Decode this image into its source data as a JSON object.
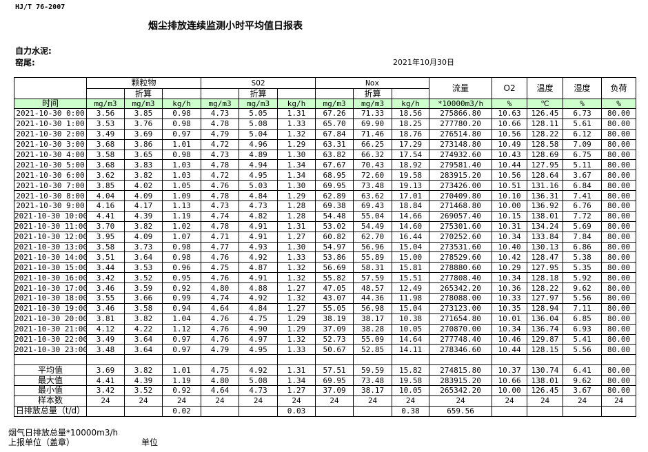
{
  "header": {
    "standard": "HJ/T  76-2007",
    "title": "烟尘排放连续监测小时平均值日报表",
    "company": "自力水泥:",
    "kiln": "窑尾:",
    "date": "2021年10月30日"
  },
  "table": {
    "groups": {
      "particulate": "颗粒物",
      "so2": "SO2",
      "nox": "Nox",
      "flow": "流量",
      "o2": "O2",
      "temp": "温度",
      "humidity": "湿度",
      "load": "负荷"
    },
    "converted": "折算",
    "units": [
      "时间",
      "mg/m3",
      "mg/m3",
      "kg/h",
      "mg/m3",
      "mg/m3",
      "kg/h",
      "mg/m3",
      "mg/m3",
      "kg/h",
      "*10000m3/h",
      "%",
      "℃",
      "%",
      "%"
    ],
    "rows": [
      [
        "2021-10-30 0:00",
        "3.56",
        "3.85",
        "0.98",
        "4.73",
        "5.05",
        "1.31",
        "67.26",
        "71.33",
        "18.56",
        "275866.80",
        "10.63",
        "126.45",
        "6.73",
        "80.00"
      ],
      [
        "2021-10-30 1:00",
        "3.53",
        "3.76",
        "0.98",
        "4.78",
        "5.08",
        "1.33",
        "65.70",
        "69.90",
        "18.25",
        "277780.20",
        "10.66",
        "128.11",
        "5.61",
        "80.00"
      ],
      [
        "2021-10-30 2:00",
        "3.49",
        "3.69",
        "0.97",
        "4.79",
        "5.04",
        "1.32",
        "67.84",
        "71.46",
        "18.76",
        "276514.80",
        "10.56",
        "128.22",
        "6.12",
        "80.00"
      ],
      [
        "2021-10-30 3:00",
        "3.68",
        "3.86",
        "1.01",
        "4.72",
        "4.96",
        "1.29",
        "63.31",
        "66.25",
        "17.29",
        "273148.80",
        "10.49",
        "128.58",
        "7.09",
        "80.00"
      ],
      [
        "2021-10-30 4:00",
        "3.58",
        "3.65",
        "0.98",
        "4.73",
        "4.89",
        "1.30",
        "63.82",
        "66.32",
        "17.54",
        "274932.60",
        "10.43",
        "128.69",
        "6.75",
        "80.00"
      ],
      [
        "2021-10-30 5:00",
        "3.68",
        "3.83",
        "1.03",
        "4.78",
        "4.94",
        "1.34",
        "67.67",
        "70.43",
        "18.92",
        "279581.40",
        "10.44",
        "127.95",
        "5.11",
        "80.00"
      ],
      [
        "2021-10-30 6:00",
        "3.62",
        "3.82",
        "1.03",
        "4.72",
        "4.95",
        "1.34",
        "68.95",
        "72.60",
        "19.58",
        "283915.20",
        "10.56",
        "128.64",
        "3.67",
        "80.00"
      ],
      [
        "2021-10-30 7:00",
        "3.85",
        "4.02",
        "1.05",
        "4.76",
        "5.03",
        "1.30",
        "69.95",
        "73.48",
        "19.13",
        "273426.00",
        "10.51",
        "131.16",
        "6.84",
        "80.00"
      ],
      [
        "2021-10-30 8:00",
        "4.04",
        "4.09",
        "1.09",
        "4.78",
        "4.84",
        "1.29",
        "62.89",
        "63.62",
        "17.01",
        "270409.80",
        "10.10",
        "136.31",
        "7.41",
        "80.00"
      ],
      [
        "2021-10-30 9:00",
        "4.16",
        "4.17",
        "1.13",
        "4.73",
        "4.73",
        "1.28",
        "69.38",
        "69.43",
        "18.84",
        "271468.80",
        "10.00",
        "136.92",
        "6.76",
        "80.00"
      ],
      [
        "2021-10-30 10:00",
        "4.41",
        "4.39",
        "1.19",
        "4.74",
        "4.82",
        "1.28",
        "54.48",
        "55.04",
        "14.66",
        "269057.40",
        "10.15",
        "138.01",
        "7.72",
        "80.00"
      ],
      [
        "2021-10-30 11:00",
        "3.70",
        "3.82",
        "1.02",
        "4.78",
        "4.91",
        "1.31",
        "53.02",
        "54.49",
        "14.60",
        "275301.60",
        "10.31",
        "134.24",
        "5.69",
        "80.00"
      ],
      [
        "2021-10-30 12:00",
        "3.95",
        "4.09",
        "1.07",
        "4.71",
        "4.91",
        "1.27",
        "60.82",
        "62.70",
        "16.44",
        "270252.60",
        "10.34",
        "133.84",
        "7.84",
        "80.00"
      ],
      [
        "2021-10-30 13:00",
        "3.58",
        "3.73",
        "0.98",
        "4.77",
        "4.93",
        "1.30",
        "54.97",
        "56.96",
        "15.04",
        "273531.60",
        "10.40",
        "130.13",
        "6.86",
        "80.00"
      ],
      [
        "2021-10-30 14:00",
        "3.51",
        "3.64",
        "0.98",
        "4.76",
        "4.92",
        "1.33",
        "53.86",
        "55.89",
        "15.00",
        "278529.60",
        "10.42",
        "128.47",
        "5.38",
        "80.00"
      ],
      [
        "2021-10-30 15:00",
        "3.44",
        "3.53",
        "0.96",
        "4.75",
        "4.87",
        "1.32",
        "56.69",
        "58.31",
        "15.81",
        "278880.60",
        "10.29",
        "127.95",
        "5.35",
        "80.00"
      ],
      [
        "2021-10-30 16:00",
        "3.42",
        "3.52",
        "0.95",
        "4.76",
        "4.91",
        "1.32",
        "55.82",
        "57.59",
        "15.51",
        "277808.40",
        "10.34",
        "128.18",
        "5.92",
        "80.00"
      ],
      [
        "2021-10-30 17:00",
        "3.46",
        "3.59",
        "0.92",
        "4.80",
        "4.88",
        "1.27",
        "47.05",
        "48.57",
        "12.49",
        "265342.20",
        "10.36",
        "128.22",
        "9.62",
        "80.00"
      ],
      [
        "2021-10-30 18:00",
        "3.55",
        "3.66",
        "0.99",
        "4.74",
        "4.92",
        "1.32",
        "43.07",
        "44.36",
        "11.98",
        "278088.00",
        "10.33",
        "127.97",
        "5.56",
        "80.00"
      ],
      [
        "2021-10-30 19:00",
        "3.46",
        "3.58",
        "0.94",
        "4.64",
        "4.84",
        "1.27",
        "55.05",
        "56.98",
        "15.04",
        "273123.00",
        "10.35",
        "128.94",
        "7.11",
        "80.00"
      ],
      [
        "2021-10-30 20:00",
        "3.81",
        "3.82",
        "1.04",
        "4.76",
        "4.75",
        "1.29",
        "38.19",
        "38.17",
        "10.38",
        "271654.80",
        "10.01",
        "136.04",
        "6.85",
        "80.00"
      ],
      [
        "2021-10-30 21:00",
        "4.12",
        "4.22",
        "1.12",
        "4.76",
        "4.90",
        "1.29",
        "37.09",
        "38.28",
        "10.05",
        "270870.00",
        "10.34",
        "136.74",
        "6.93",
        "80.00"
      ],
      [
        "2021-10-30 22:00",
        "3.49",
        "3.64",
        "0.97",
        "4.76",
        "4.97",
        "1.32",
        "52.73",
        "55.09",
        "14.64",
        "277748.40",
        "10.46",
        "129.87",
        "5.41",
        "80.00"
      ],
      [
        "2021-10-30 23:00",
        "3.48",
        "3.64",
        "0.97",
        "4.79",
        "4.95",
        "1.33",
        "50.67",
        "52.85",
        "14.11",
        "278346.60",
        "10.44",
        "128.15",
        "5.56",
        "80.00"
      ]
    ],
    "summary": [
      [
        "平均值",
        "3.69",
        "3.82",
        "1.01",
        "4.75",
        "4.92",
        "1.31",
        "57.51",
        "59.59",
        "15.82",
        "274815.80",
        "10.37",
        "130.74",
        "6.41",
        "80.00"
      ],
      [
        "最大值",
        "4.41",
        "4.39",
        "1.19",
        "4.80",
        "5.08",
        "1.34",
        "69.95",
        "73.48",
        "19.58",
        "283915.20",
        "10.66",
        "138.01",
        "9.62",
        "80.00"
      ],
      [
        "最小值",
        "3.42",
        "3.52",
        "0.92",
        "4.64",
        "4.73",
        "1.27",
        "37.09",
        "38.17",
        "10.05",
        "265342.20",
        "10.00",
        "126.45",
        "3.67",
        "80.00"
      ],
      [
        "样本数",
        "24",
        "24",
        "24",
        "24",
        "24",
        "24",
        "24",
        "24",
        "24",
        "24",
        "24",
        "24",
        "24",
        "24"
      ],
      [
        "日排放总量（t/d）",
        "",
        "",
        "0.02",
        "",
        "",
        "0.03",
        "",
        "",
        "0.38",
        "659.56",
        "",
        "",
        "",
        ""
      ]
    ]
  },
  "footer": {
    "flue_total": "烟气日排放总量*10000m3/h",
    "reporting_unit": "上报单位（盖章）",
    "unit": "单位"
  },
  "colors": {
    "unit_row_bg": "#ccffcc"
  }
}
